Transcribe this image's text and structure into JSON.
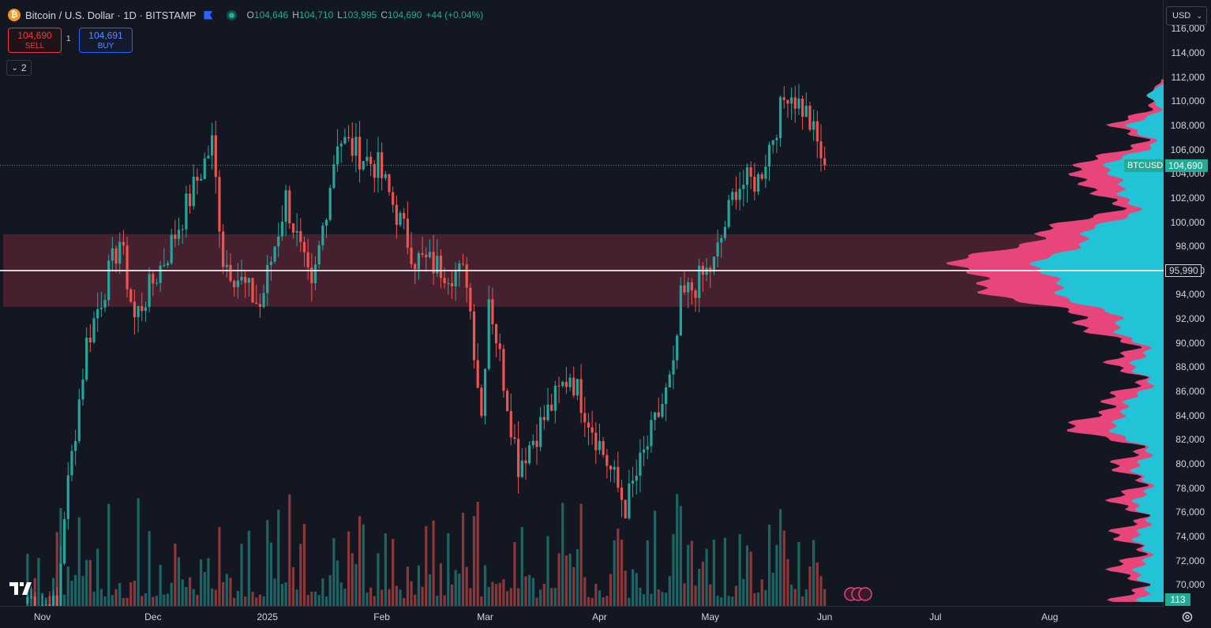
{
  "header": {
    "coin_glyph": "₿",
    "symbol": "Bitcoin / U.S. Dollar · 1D · BITSTAMP",
    "o_label": "O",
    "o_value": "104,646",
    "h_label": "H",
    "h_value": "104,710",
    "l_label": "L",
    "l_value": "103,995",
    "c_label": "C",
    "c_value": "104,690",
    "change": "+44 (+0.04%)"
  },
  "trade": {
    "sell_price": "104,690",
    "sell_label": "SELL",
    "buy_price": "104,691",
    "buy_label": "BUY",
    "spread": "1"
  },
  "indicators_toggle": "2",
  "currency": "USD",
  "price_axis": {
    "ticks": [
      "116,000",
      "114,000",
      "112,000",
      "110,000",
      "108,000",
      "106,000",
      "104,000",
      "102,000",
      "100,000",
      "98,000",
      "96,000",
      "94,000",
      "92,000",
      "90,000",
      "88,000",
      "86,000",
      "84,000",
      "82,000",
      "80,000",
      "78,000",
      "76,000",
      "74,000",
      "72,000",
      "70,000"
    ],
    "last_price_label": "104,690",
    "symbol_label": "BTCUSD",
    "horizontal_line_label": "95,990",
    "volume_label": "113"
  },
  "time_axis": [
    "Nov",
    "Dec",
    "2025",
    "Feb",
    "Mar",
    "Apr",
    "May",
    "Jun",
    "Jul",
    "Aug"
  ],
  "colors": {
    "up": "#26a69a",
    "down": "#ef5350",
    "zone": "#4a2331",
    "profile_pink": "#e8457a",
    "profile_cyan": "#22c3d6",
    "background": "#131722"
  },
  "chart_data": {
    "type": "candlestick",
    "interval": "1D",
    "ylim": [
      68500,
      117000
    ],
    "zone": {
      "from": 93000,
      "to": 99000
    },
    "horizontal_line": 95990,
    "last_price": 104690,
    "anchors": [
      {
        "date": "2024-10-28",
        "price": 69000
      },
      {
        "date": "2024-11-05",
        "price": 68000
      },
      {
        "date": "2024-11-07",
        "price": 76000
      },
      {
        "date": "2024-11-13",
        "price": 90000
      },
      {
        "date": "2024-11-22",
        "price": 98500
      },
      {
        "date": "2024-11-26",
        "price": 92000
      },
      {
        "date": "2024-12-05",
        "price": 97500
      },
      {
        "date": "2024-12-17",
        "price": 106500
      },
      {
        "date": "2024-12-20",
        "price": 97000
      },
      {
        "date": "2024-12-30",
        "price": 93000
      },
      {
        "date": "2025-01-06",
        "price": 102000
      },
      {
        "date": "2025-01-13",
        "price": 94000
      },
      {
        "date": "2025-01-20",
        "price": 107000
      },
      {
        "date": "2025-01-31",
        "price": 104500
      },
      {
        "date": "2025-02-10",
        "price": 97000
      },
      {
        "date": "2025-02-24",
        "price": 95500
      },
      {
        "date": "2025-02-28",
        "price": 84000
      },
      {
        "date": "2025-03-02",
        "price": 94000
      },
      {
        "date": "2025-03-10",
        "price": 80000
      },
      {
        "date": "2025-03-24",
        "price": 87500
      },
      {
        "date": "2025-04-08",
        "price": 76500
      },
      {
        "date": "2025-04-21",
        "price": 87500
      },
      {
        "date": "2025-04-23",
        "price": 93500
      },
      {
        "date": "2025-05-02",
        "price": 96500
      },
      {
        "date": "2025-05-08",
        "price": 103000
      },
      {
        "date": "2025-05-14",
        "price": 103500
      },
      {
        "date": "2025-05-22",
        "price": 111000
      },
      {
        "date": "2025-05-27",
        "price": 109000
      },
      {
        "date": "2025-06-01",
        "price": 104690
      }
    ]
  }
}
